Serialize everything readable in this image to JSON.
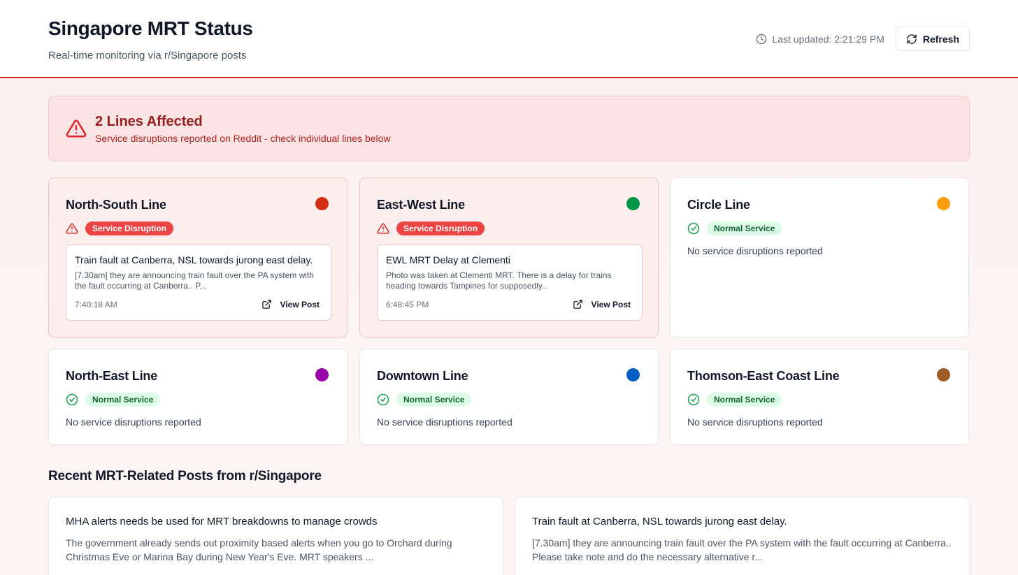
{
  "header": {
    "title": "Singapore MRT Status",
    "subtitle": "Real-time monitoring via r/Singapore posts",
    "last_updated": "Last updated: 2:21:29 PM",
    "refresh_label": "Refresh"
  },
  "alert": {
    "title": "2 Lines Affected",
    "message": "Service disruptions reported on Reddit - check individual lines below"
  },
  "lines": [
    {
      "name": "North-South Line",
      "color": "#d42e12",
      "status": "Service Disruption",
      "post": {
        "title": "Train fault at Canberra, NSL towards jurong east delay.",
        "snippet": "[7.30am] they are announcing train fault over the PA system with the fault occurring at Canberra.. P...",
        "time": "7:40:18 AM",
        "link_label": "View Post"
      }
    },
    {
      "name": "East-West Line",
      "color": "#009645",
      "status": "Service Disruption",
      "post": {
        "title": "EWL MRT Delay at Clementi",
        "snippet": "Photo was taken at Clementi MRT. There is a delay for trains heading towards Tampines for supposedly...",
        "time": "6:48:45 PM",
        "link_label": "View Post"
      }
    },
    {
      "name": "Circle Line",
      "color": "#fa9e0d",
      "status": "Normal Service",
      "message": "No service disruptions reported"
    },
    {
      "name": "North-East Line",
      "color": "#9900aa",
      "status": "Normal Service",
      "message": "No service disruptions reported"
    },
    {
      "name": "Downtown Line",
      "color": "#005ec4",
      "status": "Normal Service",
      "message": "No service disruptions reported"
    },
    {
      "name": "Thomson-East Coast Line",
      "color": "#9d5b25",
      "status": "Normal Service",
      "message": "No service disruptions reported"
    }
  ],
  "recent": {
    "heading": "Recent MRT-Related Posts from r/Singapore",
    "posts": [
      {
        "title": "MHA alerts needs be used for MRT breakdowns to manage crowds",
        "snippet": "The government already sends out proximity based alerts when you go to Orchard during Christmas Eve or Marina Bay during New Year's Eve. MRT speakers ..."
      },
      {
        "title": "Train fault at Canberra, NSL towards jurong east delay.",
        "snippet": "[7.30am] they are announcing train fault over the PA system with the fault occurring at Canberra.. Please take note and do the necessary alternative r..."
      }
    ]
  },
  "icons": {
    "clock": "clock-icon",
    "refresh": "refresh-icon",
    "warning": "warning-triangle-icon",
    "check": "check-circle-icon",
    "external": "external-link-icon"
  },
  "colors": {
    "accent_red": "#dc2626",
    "disruption_badge": "#ef4444",
    "normal_badge_bg": "#dcfce7",
    "normal_badge_text": "#166534"
  }
}
